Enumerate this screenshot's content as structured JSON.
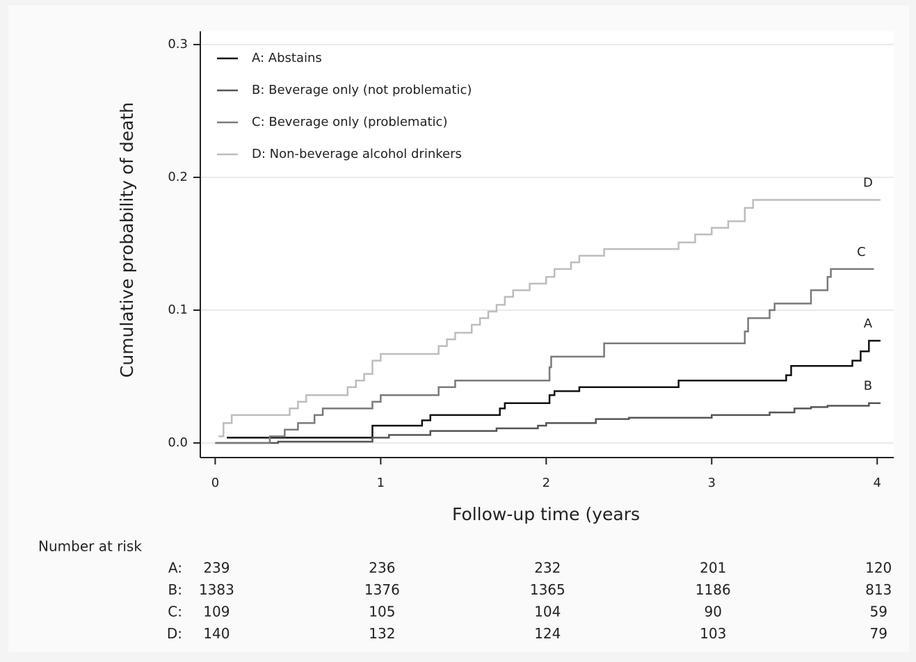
{
  "chart_data": {
    "type": "step",
    "y_label": "Cumulative probability of death",
    "x_label": "Follow-up time (years",
    "xlim": [
      -0.09,
      4.1
    ],
    "ylim": [
      -0.011,
      0.31
    ],
    "xticks": [
      0,
      1,
      2,
      3,
      4
    ],
    "yticks": [
      {
        "value": 0,
        "label": "0.0"
      },
      0.1,
      0.2,
      0.3
    ],
    "grid": true,
    "legend": "upper left",
    "series": [
      {
        "name": "A: Abstains",
        "end_label": "A",
        "color": "#111111",
        "x": [
          0.07,
          0.95,
          1.25,
          1.3,
          1.72,
          1.75,
          2.02,
          2.05,
          2.2,
          2.8,
          3.45,
          3.48,
          3.85,
          3.9,
          3.95,
          4.02
        ],
        "values": [
          0.004,
          0.013,
          0.017,
          0.021,
          0.026,
          0.03,
          0.036,
          0.039,
          0.042,
          0.047,
          0.051,
          0.058,
          0.062,
          0.069,
          0.077,
          0.077
        ]
      },
      {
        "name": "B: Beverage only (not problematic)",
        "end_label": "B",
        "color": "#555555",
        "x": [
          0.0,
          0.38,
          0.95,
          1.05,
          1.3,
          1.7,
          1.95,
          2.0,
          2.3,
          2.5,
          3.0,
          3.35,
          3.5,
          3.6,
          3.7,
          3.95,
          4.02
        ],
        "values": [
          0.0,
          0.001,
          0.004,
          0.006,
          0.009,
          0.011,
          0.013,
          0.015,
          0.018,
          0.019,
          0.021,
          0.023,
          0.026,
          0.027,
          0.028,
          0.03,
          0.03
        ]
      },
      {
        "name": "C: Beverage only (problematic)",
        "end_label": "C",
        "color": "#7a7a7a",
        "x": [
          0.0,
          0.33,
          0.42,
          0.5,
          0.6,
          0.65,
          0.95,
          1.0,
          1.35,
          1.45,
          2.02,
          2.03,
          2.35,
          3.2,
          3.22,
          3.35,
          3.38,
          3.6,
          3.7,
          3.72,
          3.98
        ],
        "values": [
          0.0,
          0.005,
          0.01,
          0.015,
          0.021,
          0.026,
          0.031,
          0.036,
          0.042,
          0.047,
          0.057,
          0.065,
          0.075,
          0.084,
          0.094,
          0.1,
          0.105,
          0.115,
          0.125,
          0.131,
          0.131
        ]
      },
      {
        "name": "D: Non-beverage alcohol drinkers",
        "end_label": "D",
        "color": "#bdbdbd",
        "x": [
          0.02,
          0.05,
          0.1,
          0.45,
          0.5,
          0.55,
          0.8,
          0.85,
          0.9,
          0.95,
          1.0,
          1.35,
          1.4,
          1.45,
          1.55,
          1.6,
          1.65,
          1.7,
          1.75,
          1.8,
          1.9,
          2.0,
          2.05,
          2.15,
          2.2,
          2.35,
          2.8,
          2.9,
          3.0,
          3.1,
          3.2,
          3.25,
          4.02
        ],
        "values": [
          0.005,
          0.015,
          0.021,
          0.026,
          0.031,
          0.036,
          0.042,
          0.047,
          0.052,
          0.062,
          0.067,
          0.073,
          0.078,
          0.083,
          0.089,
          0.094,
          0.099,
          0.104,
          0.11,
          0.115,
          0.12,
          0.125,
          0.131,
          0.136,
          0.141,
          0.146,
          0.151,
          0.157,
          0.162,
          0.167,
          0.177,
          0.183,
          0.183
        ]
      }
    ],
    "risk_table": {
      "title": "Number at risk",
      "rows": [
        {
          "label": "A:",
          "values": [
            239,
            236,
            232,
            201,
            120
          ]
        },
        {
          "label": "B:",
          "values": [
            1383,
            1376,
            1365,
            1186,
            813
          ]
        },
        {
          "label": "C:",
          "values": [
            109,
            105,
            104,
            90,
            59
          ]
        },
        {
          "label": "D:",
          "values": [
            140,
            132,
            124,
            103,
            79
          ]
        }
      ]
    }
  }
}
